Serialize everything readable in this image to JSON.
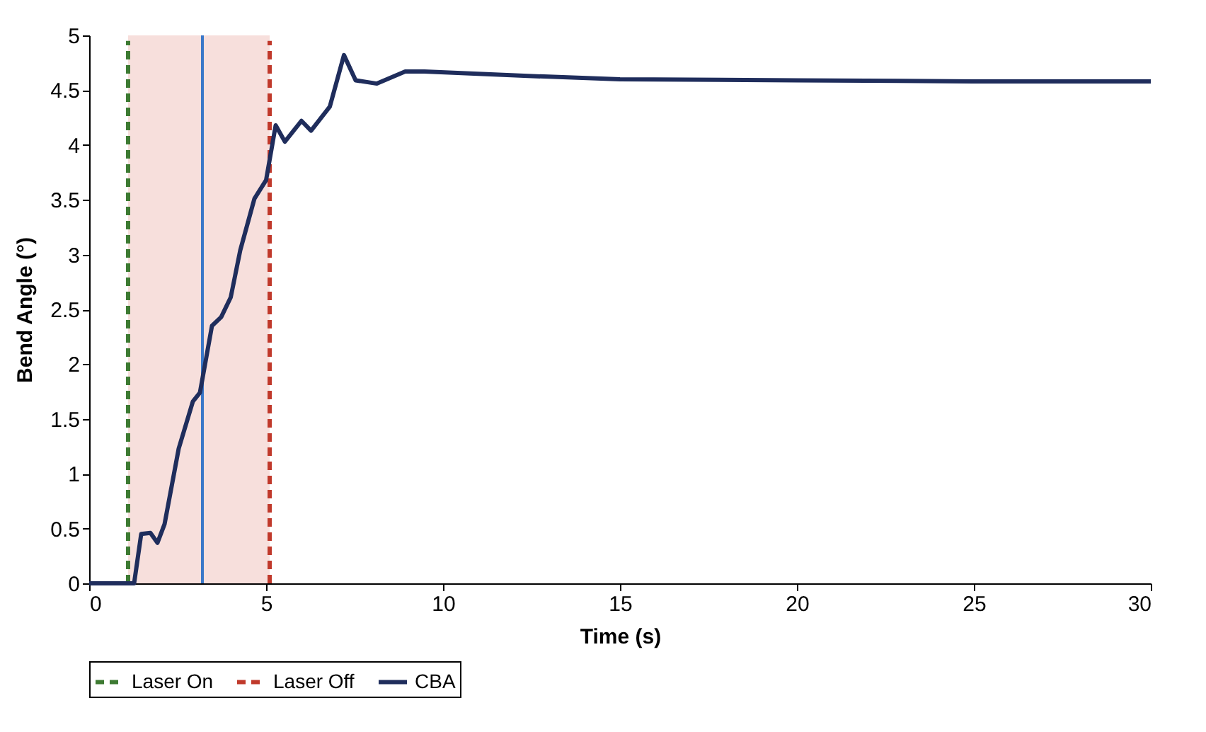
{
  "chart_data": {
    "type": "line",
    "xlabel": "Time (s)",
    "ylabel": "Bend Angle (°)",
    "xlim": [
      0,
      30
    ],
    "xticks": [
      0,
      5,
      10,
      15,
      20,
      25,
      30
    ],
    "ylim": [
      0,
      5
    ],
    "yticks": [
      0,
      0.5,
      1,
      1.5,
      2,
      2.5,
      3,
      3.5,
      4,
      4.5,
      5
    ],
    "grid": false,
    "legend": "bottom",
    "bands": [
      {
        "axis": "x",
        "from": 1.1,
        "to": 5.1,
        "color": "#f2c9c4"
      }
    ],
    "ref_lines": [
      {
        "axis": "x",
        "value": 3.2,
        "color": "#3a78c9",
        "line_style": "solid"
      }
    ],
    "series": [
      {
        "name": "Laser On",
        "color": "#3d7a32",
        "line_style": "dashed",
        "x": [
          1.1,
          1.1
        ],
        "values": [
          0,
          4.95
        ]
      },
      {
        "name": "Laser Off",
        "color": "#c0392b",
        "line_style": "dashed",
        "x": [
          5.1,
          5.1
        ],
        "values": [
          0,
          4.95
        ]
      },
      {
        "name": "CBA",
        "color": "#1f2d5c",
        "line_style": "solid",
        "x": [
          0,
          1.27,
          1.47,
          1.73,
          1.93,
          2.13,
          2.53,
          2.93,
          3.13,
          3.47,
          3.73,
          4.0,
          4.27,
          4.67,
          5.0,
          5.27,
          5.53,
          6.0,
          6.27,
          6.8,
          7.2,
          7.53,
          8.13,
          8.93,
          9.47,
          12.4,
          15,
          20,
          25,
          30
        ],
        "values": [
          0,
          0,
          0.45,
          0.46,
          0.37,
          0.54,
          1.23,
          1.66,
          1.74,
          2.35,
          2.43,
          2.61,
          3.04,
          3.51,
          3.68,
          4.18,
          4.03,
          4.22,
          4.13,
          4.35,
          4.82,
          4.59,
          4.56,
          4.67,
          4.67,
          4.63,
          4.6,
          4.59,
          4.58,
          4.58
        ]
      }
    ]
  }
}
